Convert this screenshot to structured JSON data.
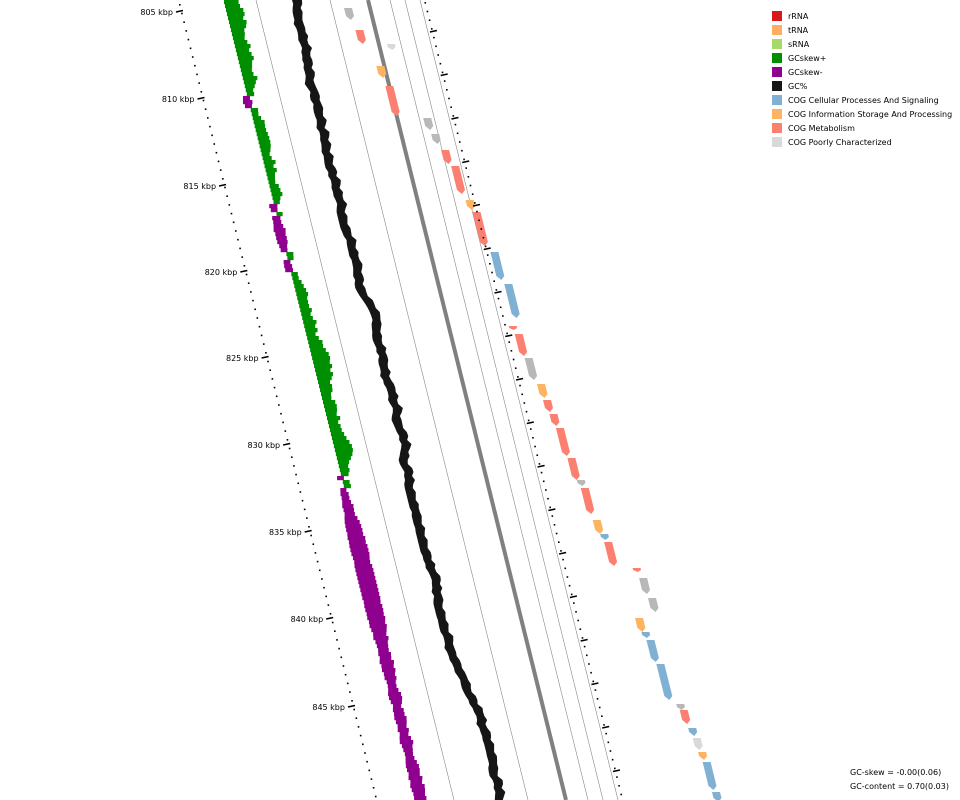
{
  "ruler": {
    "labels": [
      "805 kbp",
      "810 kbp",
      "815 kbp",
      "820 kbp",
      "825 kbp",
      "830 kbp",
      "835 kbp",
      "840 kbp",
      "845 kbp"
    ]
  },
  "legend": [
    {
      "label": "rRNA",
      "color": "#d7191c"
    },
    {
      "label": "tRNA",
      "color": "#fdae61"
    },
    {
      "label": "sRNA",
      "color": "#a6d96a"
    },
    {
      "label": "GCskew+",
      "color": "#008f00"
    },
    {
      "label": "GCskew-",
      "color": "#8f008f"
    },
    {
      "label": "GC%",
      "color": "#161616"
    },
    {
      "label": "COG Cellular Processes And Signaling",
      "color": "#80b1d3"
    },
    {
      "label": "COG Information Storage And Processing",
      "color": "#fdb462"
    },
    {
      "label": "COG Metabolism",
      "color": "#fb8072"
    },
    {
      "label": "COG Poorly Characterized",
      "color": "#d9d9d9"
    }
  ],
  "stats": {
    "gc_skew": "GC-skew = -0.00(0.06)",
    "gc_content": "GC-content = 0.70(0.03)"
  },
  "colors": {
    "gc_skew_pos": "#008f00",
    "gc_skew_neg": "#8f008f",
    "gc_content": "#161616",
    "backbone": "#808080",
    "cog_cellular": "#80b1d3",
    "cog_information": "#fdb462",
    "cog_metabolism": "#fb8072",
    "cog_poorly": "#d9d9d9",
    "unassigned": "#b8b8b8"
  }
}
